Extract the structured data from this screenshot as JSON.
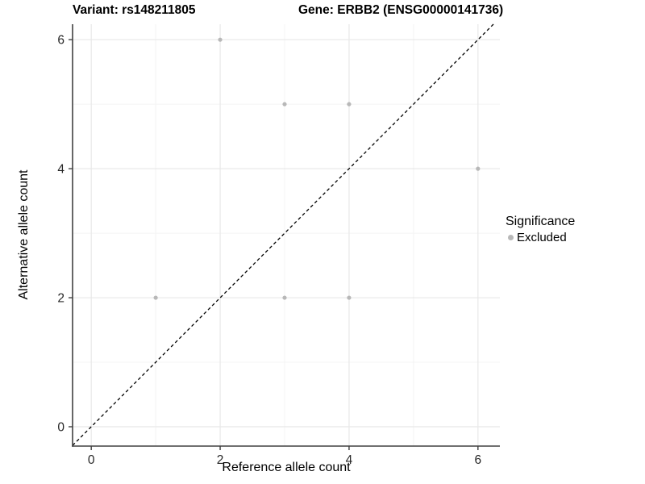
{
  "header": {
    "title_left": "Variant: rs148211805",
    "title_right": "Gene: ERBB2 (ENSG00000141736)"
  },
  "legend": {
    "title": "Significance",
    "entries": [
      {
        "label": "Excluded",
        "color": "#b8b8b8"
      }
    ]
  },
  "chart_data": {
    "type": "scatter",
    "title_left": "Variant: rs148211805",
    "title_right": "Gene: ERBB2 (ENSG00000141736)",
    "xlabel": "Reference allele count",
    "ylabel": "Alternative allele count",
    "xlim": [
      -0.29,
      6.34
    ],
    "ylim": [
      -0.3,
      6.24
    ],
    "x_ticks": [
      0,
      2,
      4,
      6
    ],
    "y_ticks": [
      0,
      2,
      4,
      6
    ],
    "x_minor_ticks": [
      1,
      3,
      5
    ],
    "y_minor_ticks": [
      1,
      3,
      5
    ],
    "grid": true,
    "legend_position": "right",
    "series": [
      {
        "name": "Excluded",
        "color": "#b8b8b8",
        "points": [
          [
            1,
            2
          ],
          [
            2,
            6
          ],
          [
            3,
            2
          ],
          [
            3,
            5
          ],
          [
            4,
            2
          ],
          [
            4,
            5
          ],
          [
            6,
            4
          ]
        ]
      }
    ],
    "reference_line": {
      "type": "identity",
      "style": "dashed",
      "color": "#000000"
    }
  },
  "colors": {
    "background": "#ffffff",
    "point": "#b8b8b8",
    "grid_major": "#e8e8e8",
    "grid_minor": "#f4f4f4",
    "axis": "#404040",
    "tick_label": "#262626",
    "ref_line": "#000000"
  }
}
